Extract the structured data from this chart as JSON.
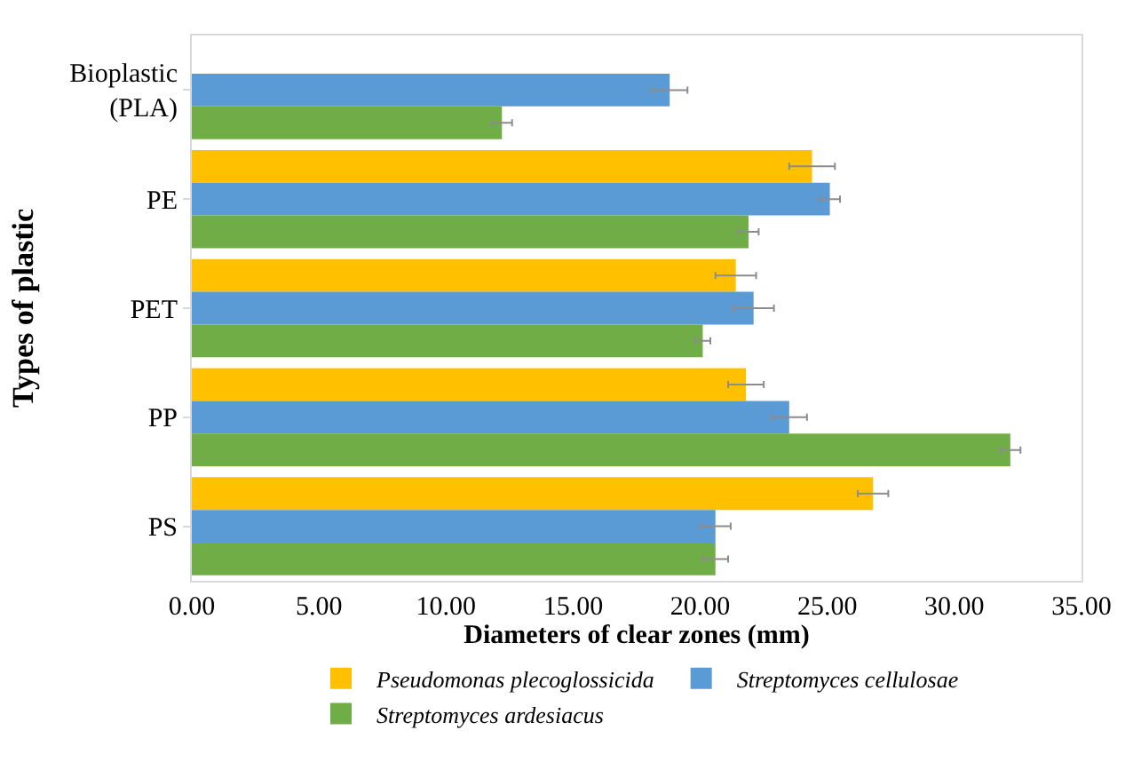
{
  "chart_data": {
    "type": "bar",
    "orientation": "horizontal",
    "xlabel": "Diameters of clear zones (mm)",
    "ylabel": "Types of plastic",
    "categories": [
      "Bioplastic (PLA)",
      "PE",
      "PET",
      "PP",
      "PS"
    ],
    "series": [
      {
        "name": "Pseudomonas plecoglossicida",
        "color": "#ffc000",
        "values": [
          null,
          24.4,
          21.4,
          21.8,
          26.8
        ],
        "errors": [
          null,
          0.9,
          0.8,
          0.7,
          0.6
        ]
      },
      {
        "name": "Streptomyces cellulosae",
        "color": "#5b9bd5",
        "values": [
          18.8,
          25.1,
          22.1,
          23.5,
          20.6
        ],
        "errors": [
          0.7,
          0.4,
          0.8,
          0.7,
          0.6
        ]
      },
      {
        "name": "Streptomyces ardesiacus",
        "color": "#70ad47",
        "values": [
          12.2,
          21.9,
          20.1,
          32.2,
          20.6
        ],
        "errors": [
          0.4,
          0.4,
          0.3,
          0.4,
          0.5
        ]
      }
    ],
    "xlim": [
      0,
      35
    ],
    "xticks": [
      {
        "value": 0,
        "label": "0.00"
      },
      {
        "value": 5,
        "label": "5.00"
      },
      {
        "value": 10,
        "label": "10.00"
      },
      {
        "value": 15,
        "label": "15.00"
      },
      {
        "value": 20,
        "label": "20.00"
      },
      {
        "value": 25,
        "label": "25.00"
      },
      {
        "value": 30,
        "label": "30.00"
      },
      {
        "value": 35,
        "label": "35.00"
      }
    ],
    "grid": false,
    "legend": "bottom"
  }
}
